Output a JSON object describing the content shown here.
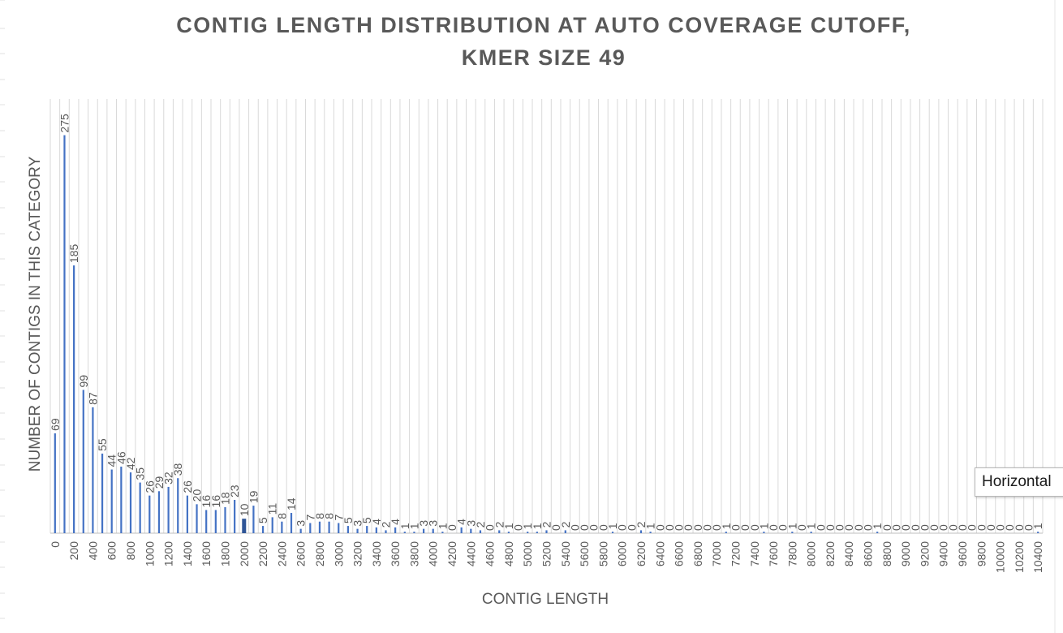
{
  "chart_data": {
    "type": "bar",
    "title_line1": "CONTIG LENGTH DISTRIBUTION AT AUTO COVERAGE CUTOFF,",
    "title_line2": "KMER SIZE 49",
    "xlabel": "CONTIG LENGTH",
    "ylabel": "NUMBER OF CONTIGS IN THIS CATEGORY",
    "ylim": [
      0,
      300
    ],
    "grid": "vertical",
    "bar_color": "#4472c4",
    "highlight_color": "#2f5597",
    "gridline_color": "#d9d9d9",
    "text_color": "#595959",
    "x": [
      0,
      100,
      200,
      300,
      400,
      500,
      600,
      700,
      800,
      900,
      1000,
      1100,
      1200,
      1300,
      1400,
      1500,
      1600,
      1700,
      1800,
      1900,
      2000,
      2100,
      2200,
      2300,
      2400,
      2500,
      2600,
      2700,
      2800,
      2900,
      3000,
      3100,
      3200,
      3300,
      3400,
      3500,
      3600,
      3700,
      3800,
      3900,
      4000,
      4100,
      4200,
      4300,
      4400,
      4500,
      4600,
      4700,
      4800,
      4900,
      5000,
      5100,
      5200,
      5300,
      5400,
      5500,
      5600,
      5700,
      5800,
      5900,
      6000,
      6100,
      6200,
      6300,
      6400,
      6500,
      6600,
      6700,
      6800,
      6900,
      7000,
      7100,
      7200,
      7300,
      7400,
      7500,
      7600,
      7700,
      7800,
      7900,
      8000,
      8100,
      8200,
      8300,
      8400,
      8500,
      8600,
      8700,
      8800,
      8900,
      9000,
      9100,
      9200,
      9300,
      9400,
      9500,
      9600,
      9700,
      9800,
      9900,
      10000,
      10100,
      10200,
      10300,
      10400
    ],
    "values": [
      69,
      275,
      185,
      99,
      87,
      55,
      44,
      46,
      42,
      35,
      26,
      29,
      32,
      38,
      26,
      20,
      16,
      16,
      18,
      23,
      10,
      19,
      5,
      11,
      8,
      14,
      3,
      7,
      8,
      8,
      7,
      5,
      3,
      5,
      4,
      2,
      4,
      1,
      1,
      3,
      3,
      1,
      0,
      4,
      3,
      2,
      0,
      2,
      1,
      0,
      1,
      1,
      2,
      0,
      2,
      0,
      0,
      0,
      0,
      1,
      0,
      0,
      2,
      1,
      0,
      0,
      0,
      0,
      0,
      0,
      0,
      1,
      0,
      0,
      0,
      1,
      0,
      0,
      1,
      0,
      1,
      0,
      0,
      0,
      0,
      0,
      0,
      1,
      0,
      0,
      0,
      0,
      0,
      0,
      0,
      0,
      0,
      0,
      0,
      0,
      0,
      0,
      0,
      0,
      1
    ],
    "tick_labels": [
      "0",
      "200",
      "400",
      "600",
      "800",
      "1000",
      "1200",
      "1400",
      "1600",
      "1800",
      "2000",
      "2200",
      "2400",
      "2600",
      "2800",
      "3000",
      "3200",
      "3400",
      "3600",
      "3800",
      "4000",
      "4200",
      "4400",
      "4600",
      "4800",
      "5000",
      "5200",
      "5400",
      "5600",
      "5800",
      "6000",
      "6200",
      "6400",
      "6600",
      "6800",
      "7000",
      "7200",
      "7400",
      "7600",
      "7800",
      "8000",
      "8200",
      "8400",
      "8600",
      "8800",
      "9000",
      "9200",
      "9400",
      "9600",
      "9800",
      "10000",
      "10200",
      "10400"
    ],
    "highlighted_index": 20
  },
  "tooltip": {
    "text": "Horizontal"
  }
}
